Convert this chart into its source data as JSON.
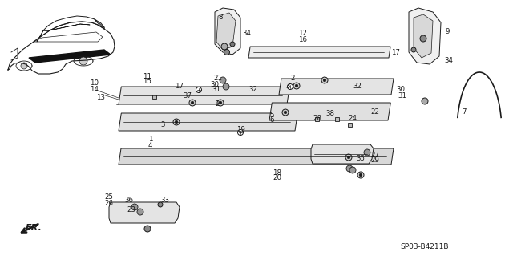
{
  "bg_color": "#ffffff",
  "diagram_code": "SP03-B4211B",
  "lc": "#1a1a1a",
  "lw": 0.7,
  "fs": 6.5
}
